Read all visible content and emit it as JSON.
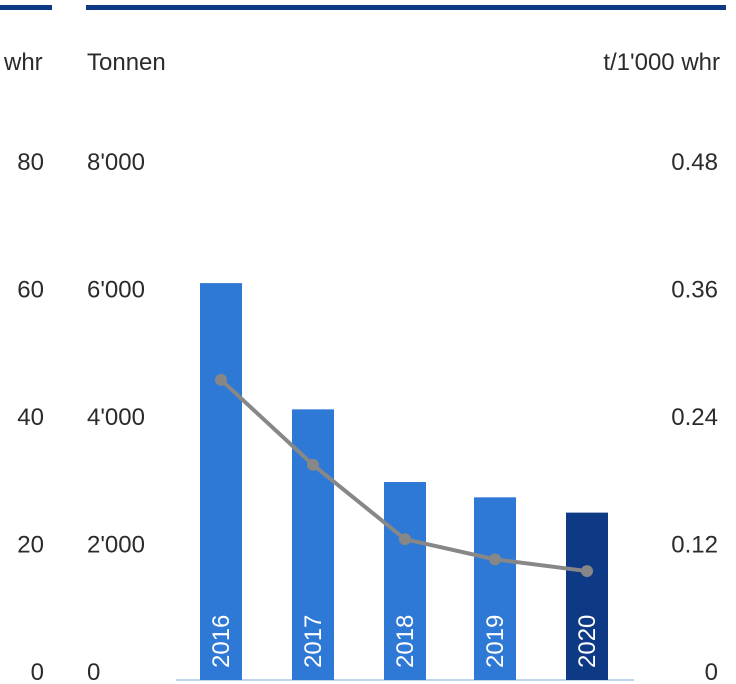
{
  "colors": {
    "bar": "#2E78D6",
    "bar_highlight": "#0E3A85",
    "line": "#878787",
    "top_rule": "#0E3A85",
    "baseline": "#BFD3EA"
  },
  "chart_data": {
    "type": "bar",
    "categories": [
      "2016",
      "2017",
      "2018",
      "2019",
      "2020"
    ],
    "series": [
      {
        "values": [
          6100,
          4120,
          2980,
          2740,
          2500
        ],
        "axis": "middle",
        "unit": "Tonnen"
      },
      {
        "values": [
          0.275,
          0.195,
          0.125,
          0.106,
          0.095
        ],
        "axis": "right",
        "unit": "t/1'000 whr",
        "type": "line"
      }
    ],
    "highlight_index": 4,
    "axes": {
      "left": {
        "label": "whr",
        "ticks": [
          "0",
          "20",
          "40",
          "60",
          "80"
        ],
        "ylim": [
          0,
          80
        ]
      },
      "middle": {
        "label": "Tonnen",
        "ticks": [
          "0",
          "2'000",
          "4'000",
          "6'000",
          "8'000"
        ],
        "ylim": [
          0,
          8000
        ]
      },
      "right": {
        "label": "t/1'000 whr",
        "ticks": [
          "0",
          "0.12",
          "0.24",
          "0.36",
          "0.48"
        ],
        "ylim": [
          0,
          0.48
        ]
      }
    },
    "grid": false,
    "legend": "none"
  }
}
